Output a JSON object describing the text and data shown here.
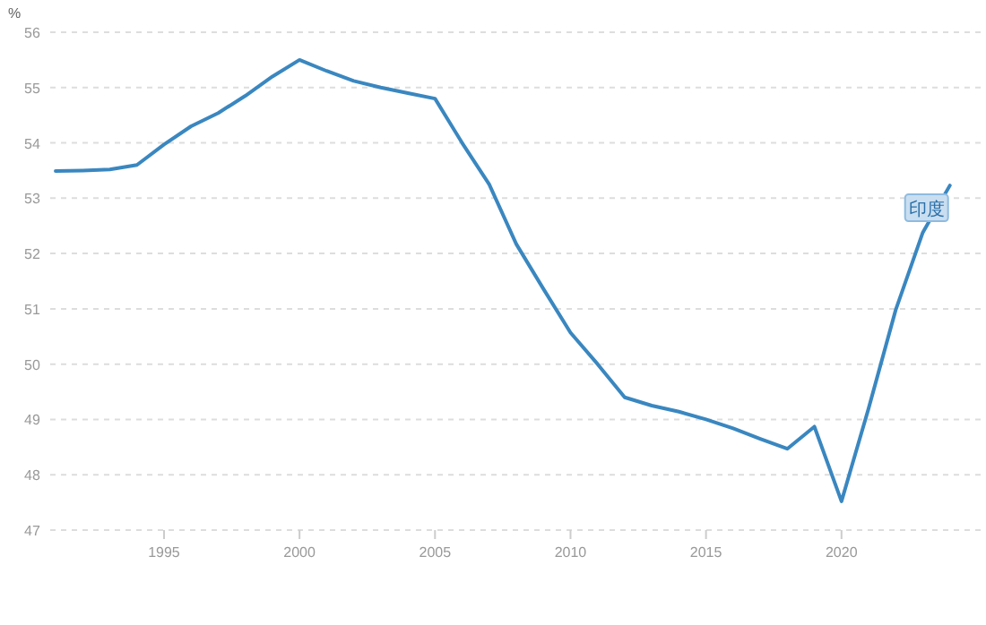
{
  "chart_data": {
    "type": "line",
    "ylabel": "%",
    "x": [
      1991,
      1992,
      1993,
      1994,
      1995,
      1996,
      1997,
      1998,
      1999,
      2000,
      2001,
      2002,
      2003,
      2004,
      2005,
      2006,
      2007,
      2008,
      2009,
      2010,
      2011,
      2012,
      2013,
      2014,
      2015,
      2016,
      2017,
      2018,
      2019,
      2020,
      2021,
      2022,
      2023,
      2024
    ],
    "series": [
      {
        "name": "印度",
        "color": "#3a87c0",
        "values": [
          53.49,
          53.5,
          53.52,
          53.6,
          53.97,
          54.3,
          54.54,
          54.85,
          55.2,
          55.5,
          55.3,
          55.12,
          55.0,
          54.9,
          54.8,
          54.0,
          53.25,
          52.17,
          51.36,
          50.57,
          50.0,
          49.4,
          49.25,
          49.14,
          49.0,
          48.84,
          48.65,
          48.47,
          48.87,
          47.52,
          49.2,
          50.98,
          52.38,
          53.23
        ]
      }
    ],
    "xlim": [
      1990.8,
      2025.2
    ],
    "xticks": [
      1995,
      2000,
      2005,
      2010,
      2015,
      2020
    ],
    "ylim": [
      47,
      56
    ],
    "yticks": [
      47,
      48,
      49,
      50,
      51,
      52,
      53,
      54,
      55,
      56
    ],
    "grid": "y",
    "line_style": "solid"
  }
}
